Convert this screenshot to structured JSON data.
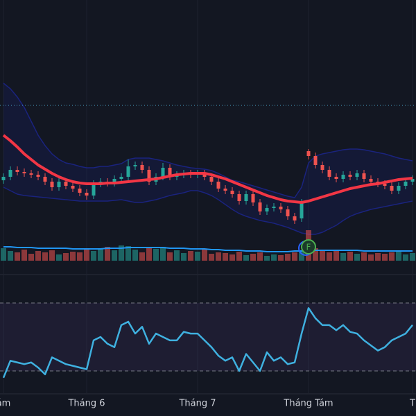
{
  "chart_data": {
    "type": "candlestick",
    "x_ticks": [
      {
        "value": 0,
        "label": "ám"
      },
      {
        "value": 12,
        "label": "Tháng 6"
      },
      {
        "value": 28,
        "label": "Tháng 7"
      },
      {
        "value": 44,
        "label": "Tháng Tám"
      },
      {
        "value": 59,
        "label": "T"
      }
    ],
    "open": [
      80,
      85,
      95,
      92,
      90,
      88,
      85,
      78,
      70,
      78,
      72,
      68,
      62,
      58,
      75,
      78,
      76,
      82,
      85,
      100,
      102,
      95,
      78,
      85,
      98,
      85,
      88,
      90,
      88,
      90,
      85,
      78,
      68,
      65,
      60,
      50,
      60,
      48,
      35,
      40,
      42,
      38,
      28,
      25,
      122,
      115,
      102,
      95,
      85,
      82,
      88,
      85,
      90,
      82,
      78,
      75,
      72,
      65,
      72,
      78
    ],
    "high": [
      90,
      100,
      100,
      97,
      95,
      93,
      90,
      83,
      83,
      83,
      77,
      73,
      67,
      80,
      83,
      83,
      87,
      90,
      110,
      107,
      107,
      100,
      90,
      105,
      103,
      93,
      95,
      95,
      95,
      95,
      90,
      83,
      73,
      70,
      65,
      65,
      65,
      53,
      45,
      47,
      47,
      43,
      33,
      53,
      125,
      120,
      107,
      100,
      90,
      93,
      93,
      95,
      95,
      87,
      83,
      80,
      77,
      77,
      83,
      87
    ],
    "low": [
      75,
      80,
      87,
      85,
      83,
      80,
      73,
      65,
      65,
      67,
      63,
      57,
      52,
      53,
      70,
      71,
      71,
      77,
      80,
      95,
      90,
      73,
      73,
      80,
      80,
      80,
      83,
      83,
      83,
      80,
      73,
      63,
      60,
      55,
      45,
      45,
      43,
      30,
      30,
      35,
      33,
      23,
      17,
      20,
      110,
      97,
      90,
      80,
      77,
      77,
      80,
      80,
      77,
      73,
      70,
      67,
      60,
      60,
      67,
      73
    ],
    "close": [
      85,
      95,
      92,
      90,
      88,
      85,
      78,
      70,
      78,
      72,
      68,
      62,
      58,
      75,
      78,
      76,
      82,
      85,
      100,
      102,
      95,
      78,
      85,
      98,
      85,
      88,
      90,
      88,
      90,
      85,
      78,
      68,
      65,
      60,
      50,
      60,
      48,
      35,
      40,
      42,
      38,
      28,
      22,
      48,
      115,
      102,
      95,
      85,
      82,
      88,
      85,
      90,
      82,
      78,
      75,
      72,
      65,
      72,
      78,
      82
    ],
    "ylim": [
      0,
      340
    ],
    "up_color": "#26a69a",
    "down_color": "#ef5350",
    "price_line": 188,
    "bollinger": {
      "middle": [
        145,
        137,
        128,
        118,
        110,
        102,
        96,
        90,
        85,
        81,
        78,
        76,
        75,
        75,
        75,
        76,
        76,
        77,
        78,
        79,
        80,
        81,
        82,
        84,
        86,
        88,
        89,
        90,
        90,
        90,
        88,
        85,
        82,
        78,
        74,
        70,
        66,
        62,
        58,
        55,
        52,
        50,
        49,
        48,
        50,
        53,
        56,
        59,
        62,
        65,
        68,
        70,
        72,
        74,
        75,
        77,
        79,
        81,
        82,
        83
      ],
      "upper": [
        220,
        212,
        200,
        185,
        165,
        145,
        130,
        118,
        110,
        105,
        103,
        100,
        98,
        98,
        100,
        100,
        102,
        104,
        110,
        112,
        112,
        112,
        110,
        108,
        105,
        102,
        100,
        98,
        97,
        96,
        94,
        90,
        85,
        80,
        78,
        75,
        72,
        69,
        66,
        63,
        60,
        57,
        55,
        70,
        105,
        115,
        118,
        120,
        122,
        124,
        125,
        125,
        124,
        122,
        120,
        118,
        115,
        112,
        110,
        108
      ],
      "lower": [
        70,
        65,
        60,
        58,
        57,
        56,
        55,
        54,
        53,
        52,
        51,
        50,
        50,
        50,
        50,
        50,
        51,
        52,
        50,
        48,
        48,
        50,
        52,
        55,
        58,
        60,
        62,
        65,
        65,
        62,
        58,
        52,
        45,
        38,
        32,
        28,
        25,
        22,
        20,
        18,
        15,
        12,
        8,
        4,
        2,
        2,
        5,
        10,
        15,
        22,
        28,
        32,
        35,
        38,
        40,
        42,
        44,
        46,
        48,
        50
      ],
      "middle_color": "#f23645",
      "band_color": "#1a237e"
    },
    "volume": {
      "values": [
        18,
        14,
        12,
        16,
        10,
        14,
        12,
        15,
        9,
        11,
        13,
        12,
        16,
        14,
        18,
        20,
        15,
        22,
        21,
        16,
        12,
        18,
        17,
        20,
        12,
        15,
        11,
        14,
        13,
        16,
        10,
        12,
        11,
        9,
        13,
        8,
        10,
        12,
        7,
        9,
        8,
        10,
        12,
        14,
        44,
        18,
        16,
        12,
        14,
        11,
        13,
        10,
        12,
        9,
        11,
        10,
        12,
        14,
        9,
        11
      ],
      "ma": [
        20,
        20,
        19,
        19,
        19,
        18,
        18,
        18,
        18,
        18,
        17,
        17,
        17,
        17,
        17,
        18,
        18,
        18,
        19,
        19,
        19,
        19,
        19,
        19,
        18,
        18,
        18,
        17,
        17,
        17,
        16,
        16,
        15,
        15,
        15,
        14,
        14,
        14,
        13,
        13,
        13,
        13,
        14,
        14,
        15,
        15,
        15,
        15,
        15,
        15,
        15,
        15,
        14,
        14,
        14,
        14,
        14,
        14,
        14,
        14
      ],
      "ylim": [
        0,
        60
      ],
      "ma_color": "#2196f3"
    },
    "rsi": {
      "values": [
        26,
        36,
        35,
        34,
        35,
        32,
        28,
        38,
        36,
        34,
        33,
        32,
        31,
        48,
        50,
        46,
        44,
        57,
        59,
        52,
        56,
        46,
        52,
        50,
        48,
        48,
        53,
        52,
        52,
        48,
        44,
        39,
        36,
        38,
        30,
        40,
        35,
        30,
        41,
        36,
        38,
        34,
        35,
        52,
        67,
        61,
        57,
        57,
        54,
        57,
        53,
        52,
        48,
        45,
        42,
        44,
        48,
        50,
        52,
        57
      ],
      "ylim": [
        0,
        100
      ],
      "levels": [
        70,
        30
      ],
      "color": "#3fb1e0"
    },
    "annotations": [
      {
        "x": 44,
        "label": "F"
      }
    ]
  }
}
